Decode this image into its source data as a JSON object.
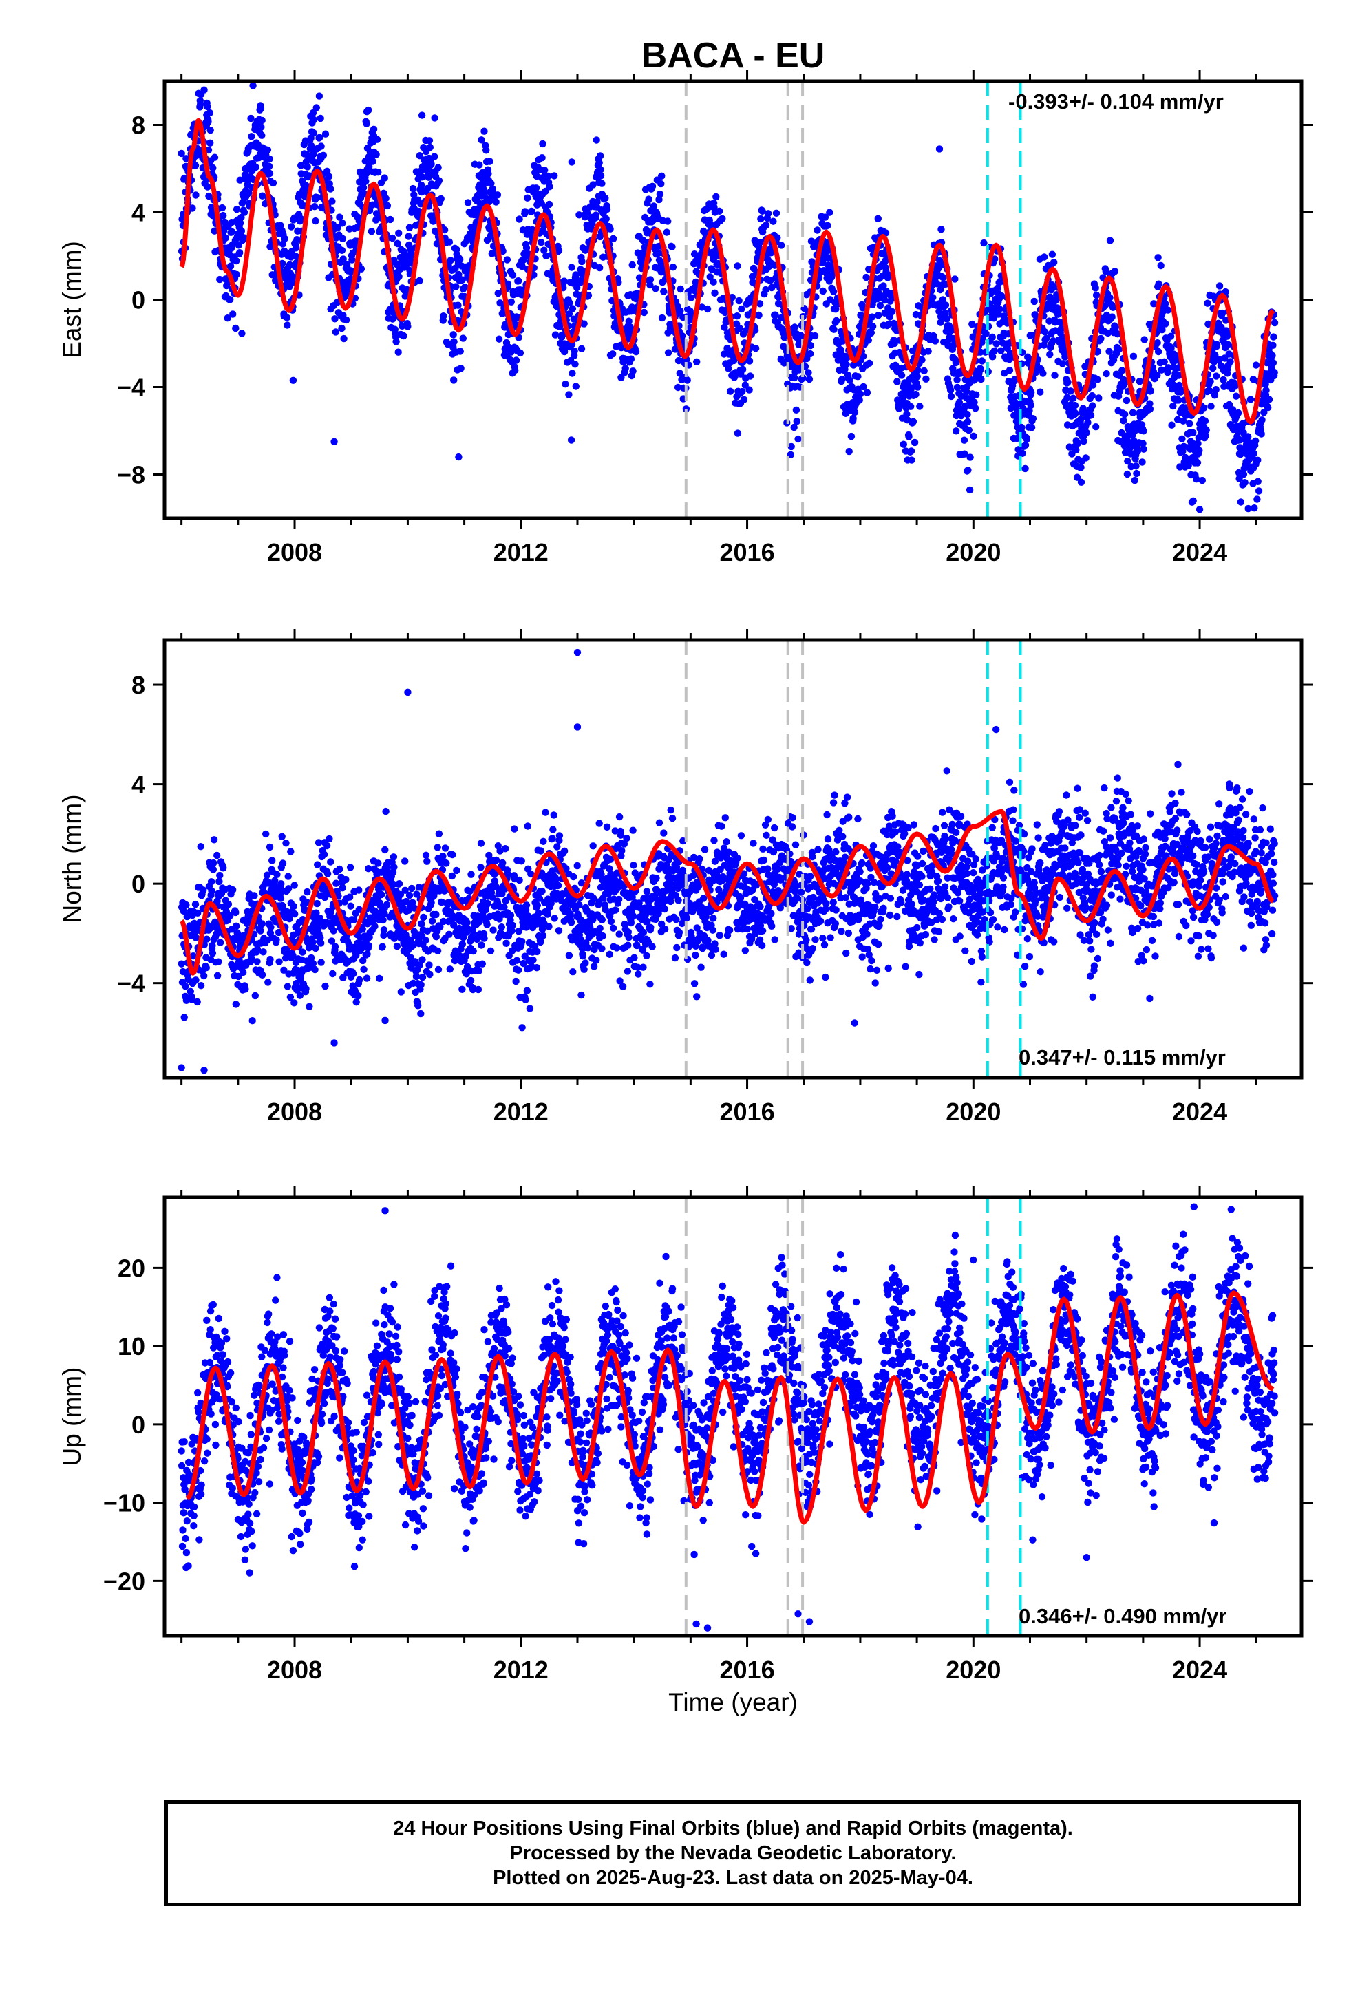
{
  "title": "BACA - EU",
  "x_axis_label": "Time (year)",
  "footer": {
    "line1": "24 Hour Positions Using Final Orbits (blue) and Rapid Orbits (magenta).",
    "line2": "Processed by the Nevada Geodetic Laboratory.",
    "line3": "Plotted on 2025-Aug-23. Last data on 2025-May-04."
  },
  "colors": {
    "final_orbits": "#0000ff",
    "model_fit": "#ff0000",
    "equipment_change_lines": "#c0c0c0",
    "earthquake_lines": "#00e5ee",
    "frame": "#000000"
  },
  "chart_data": [
    {
      "type": "scatter",
      "component": "east",
      "ylabel": "East (mm)",
      "rate_label": "-0.393+/- 0.104 mm/yr",
      "xlim": [
        2005.7,
        2025.8
      ],
      "ylim": [
        -10,
        10
      ],
      "x_ticks": [
        2008,
        2012,
        2016,
        2020,
        2024
      ],
      "y_ticks": [
        -8,
        -4,
        0,
        4,
        8
      ],
      "fit": {
        "offset_start": 5.0,
        "offset_end": -5.0,
        "amplitude_start": 3.0,
        "amplitude_end": 2.8,
        "residual_scatter": 1.3,
        "peak_phase": 0.35
      },
      "series": [
        {
          "name": "Final Orbits",
          "color": "#0000ff",
          "points": [
            [
              2006.0,
              1.5
            ],
            [
              2006.2,
              6.9
            ],
            [
              2006.3,
              8.2
            ],
            [
              2006.5,
              5.6
            ],
            [
              2006.8,
              1.3
            ],
            [
              2007.0,
              0.2
            ],
            [
              2007.4,
              5.8
            ],
            [
              2007.9,
              -0.5
            ],
            [
              2008.4,
              5.9
            ],
            [
              2008.9,
              -0.4
            ],
            [
              2009.4,
              5.3
            ],
            [
              2009.9,
              -0.9
            ],
            [
              2010.4,
              4.8
            ],
            [
              2010.9,
              -1.4
            ],
            [
              2011.4,
              4.3
            ],
            [
              2011.9,
              -1.6
            ],
            [
              2012.4,
              3.9
            ],
            [
              2012.9,
              -1.9
            ],
            [
              2013.4,
              3.5
            ],
            [
              2013.9,
              -2.2
            ],
            [
              2014.4,
              3.2
            ],
            [
              2014.9,
              -2.6
            ],
            [
              2015.4,
              3.2
            ],
            [
              2015.9,
              -2.8
            ],
            [
              2016.4,
              2.9
            ],
            [
              2016.9,
              -2.9
            ],
            [
              2017.4,
              3.1
            ],
            [
              2017.9,
              -2.8
            ],
            [
              2018.4,
              2.9
            ],
            [
              2018.9,
              -3.2
            ],
            [
              2019.4,
              2.5
            ],
            [
              2019.9,
              -3.5
            ],
            [
              2020.4,
              2.5
            ],
            [
              2020.9,
              -4.1
            ],
            [
              2021.4,
              1.4
            ],
            [
              2021.9,
              -4.5
            ],
            [
              2022.4,
              1.0
            ],
            [
              2022.9,
              -4.8
            ],
            [
              2023.4,
              0.6
            ],
            [
              2023.9,
              -5.2
            ],
            [
              2024.4,
              0.2
            ],
            [
              2024.9,
              -5.6
            ],
            [
              2025.3,
              -0.5
            ]
          ]
        },
        {
          "name": "Model fit",
          "color": "#ff0000",
          "type": "line"
        }
      ],
      "outliers": [
        [
          2006.4,
          9.6
        ],
        [
          2008.7,
          -6.5
        ],
        [
          2010.9,
          -7.2
        ],
        [
          2009.4,
          7.8
        ],
        [
          2024.0,
          -9.6
        ],
        [
          2023.8,
          -7.6
        ],
        [
          2012.9,
          6.3
        ],
        [
          2019.4,
          6.9
        ]
      ]
    },
    {
      "type": "scatter",
      "component": "north",
      "ylabel": "North (mm)",
      "rate_label": "0.347+/- 0.115 mm/yr",
      "xlim": [
        2005.7,
        2025.8
      ],
      "ylim": [
        -7.8,
        9.8
      ],
      "x_ticks": [
        2008,
        2012,
        2016,
        2020,
        2024
      ],
      "y_ticks": [
        -4,
        0,
        4,
        8
      ],
      "fit": {
        "offset_start": -2.0,
        "offset_end": 1.0,
        "amplitude_start": 1.0,
        "amplitude_end": 1.0,
        "residual_scatter": 1.2,
        "peak_phase": 0.6
      },
      "series": [
        {
          "name": "Final Orbits",
          "color": "#0000ff",
          "points": [
            [
              2006.0,
              -1.5
            ],
            [
              2006.2,
              -3.6
            ],
            [
              2006.5,
              -0.8
            ],
            [
              2007.0,
              -2.9
            ],
            [
              2007.5,
              -0.5
            ],
            [
              2008.0,
              -2.6
            ],
            [
              2008.5,
              0.2
            ],
            [
              2009.0,
              -2.0
            ],
            [
              2009.5,
              0.2
            ],
            [
              2010.0,
              -1.8
            ],
            [
              2010.5,
              0.5
            ],
            [
              2011.0,
              -1.0
            ],
            [
              2011.5,
              0.7
            ],
            [
              2012.0,
              -0.7
            ],
            [
              2012.5,
              1.2
            ],
            [
              2013.0,
              -0.5
            ],
            [
              2013.5,
              1.5
            ],
            [
              2014.0,
              -0.2
            ],
            [
              2014.5,
              1.7
            ],
            [
              2015.0,
              0.8
            ],
            [
              2015.5,
              -1.0
            ],
            [
              2016.0,
              0.8
            ],
            [
              2016.5,
              -0.8
            ],
            [
              2017.0,
              1.0
            ],
            [
              2017.5,
              -0.5
            ],
            [
              2018.0,
              1.5
            ],
            [
              2018.5,
              0.0
            ],
            [
              2019.0,
              2.0
            ],
            [
              2019.5,
              0.5
            ],
            [
              2020.0,
              2.3
            ],
            [
              2020.5,
              2.9
            ],
            [
              2020.8,
              -0.4
            ],
            [
              2021.2,
              -2.2
            ],
            [
              2021.5,
              0.2
            ],
            [
              2022.0,
              -1.5
            ],
            [
              2022.5,
              0.5
            ],
            [
              2023.0,
              -1.3
            ],
            [
              2023.5,
              1.0
            ],
            [
              2024.0,
              -1.0
            ],
            [
              2024.5,
              1.5
            ],
            [
              2025.0,
              0.8
            ],
            [
              2025.3,
              -0.7
            ]
          ]
        },
        {
          "name": "Model fit",
          "color": "#ff0000",
          "type": "line"
        }
      ],
      "outliers": [
        [
          2013.0,
          9.3
        ],
        [
          2010.0,
          7.7
        ],
        [
          2013.0,
          6.3
        ],
        [
          2006.0,
          -7.4
        ],
        [
          2006.4,
          -7.5
        ],
        [
          2008.7,
          -6.4
        ],
        [
          2020.4,
          6.2
        ],
        [
          2017.9,
          -5.6
        ],
        [
          2009.6,
          -5.5
        ]
      ]
    },
    {
      "type": "scatter",
      "component": "up",
      "ylabel": "Up (mm)",
      "rate_label": "0.346+/- 0.490 mm/yr",
      "xlim": [
        2005.7,
        2025.8
      ],
      "ylim": [
        -27,
        29
      ],
      "x_ticks": [
        2008,
        2012,
        2016,
        2020,
        2024
      ],
      "y_ticks": [
        -20,
        -10,
        0,
        10,
        20
      ],
      "fit": {
        "offset_start": -1.0,
        "offset_end": 8.5,
        "amplitude_start": 8.2,
        "amplitude_end": 8.3,
        "residual_scatter": 4.2,
        "peak_phase": 0.62
      },
      "series": [
        {
          "name": "Final Orbits",
          "color": "#0000ff",
          "points": [
            [
              2006.1,
              -9.5
            ],
            [
              2006.6,
              7.2
            ],
            [
              2007.1,
              -9.0
            ],
            [
              2007.6,
              7.5
            ],
            [
              2008.1,
              -8.8
            ],
            [
              2008.6,
              7.8
            ],
            [
              2009.1,
              -8.5
            ],
            [
              2009.6,
              8.0
            ],
            [
              2010.1,
              -8.2
            ],
            [
              2010.6,
              8.3
            ],
            [
              2011.1,
              -8.0
            ],
            [
              2011.6,
              8.7
            ],
            [
              2012.1,
              -7.5
            ],
            [
              2012.6,
              9.0
            ],
            [
              2013.1,
              -7.0
            ],
            [
              2013.6,
              9.3
            ],
            [
              2014.1,
              -6.5
            ],
            [
              2014.6,
              9.5
            ],
            [
              2015.1,
              -10.5
            ],
            [
              2015.6,
              5.5
            ],
            [
              2016.1,
              -10.5
            ],
            [
              2016.6,
              6.0
            ],
            [
              2017.0,
              -12.5
            ],
            [
              2017.6,
              5.8
            ],
            [
              2018.1,
              -11.0
            ],
            [
              2018.6,
              6.0
            ],
            [
              2019.1,
              -10.5
            ],
            [
              2019.6,
              6.5
            ],
            [
              2020.1,
              -10.0
            ],
            [
              2020.6,
              9.0
            ],
            [
              2021.1,
              -0.5
            ],
            [
              2021.6,
              16.0
            ],
            [
              2022.1,
              -1.0
            ],
            [
              2022.6,
              16.2
            ],
            [
              2023.1,
              -0.5
            ],
            [
              2023.6,
              16.5
            ],
            [
              2024.1,
              0.0
            ],
            [
              2024.6,
              16.8
            ],
            [
              2025.3,
              4.5
            ]
          ]
        },
        {
          "name": "Model fit",
          "color": "#ff0000",
          "type": "line"
        }
      ],
      "outliers": [
        [
          2009.6,
          27.3
        ],
        [
          2023.9,
          27.8
        ],
        [
          2015.1,
          -25.5
        ],
        [
          2015.3,
          -26.0
        ],
        [
          2017.1,
          -25.2
        ],
        [
          2016.9,
          -24.2
        ],
        [
          2020.7,
          17.5
        ],
        [
          2022.0,
          -17.0
        ],
        [
          2020.0,
          21.0
        ]
      ]
    }
  ],
  "event_lines": {
    "equipment_changes": [
      2014.92,
      2016.72,
      2016.98
    ],
    "earthquakes": [
      2020.25,
      2020.83
    ]
  }
}
